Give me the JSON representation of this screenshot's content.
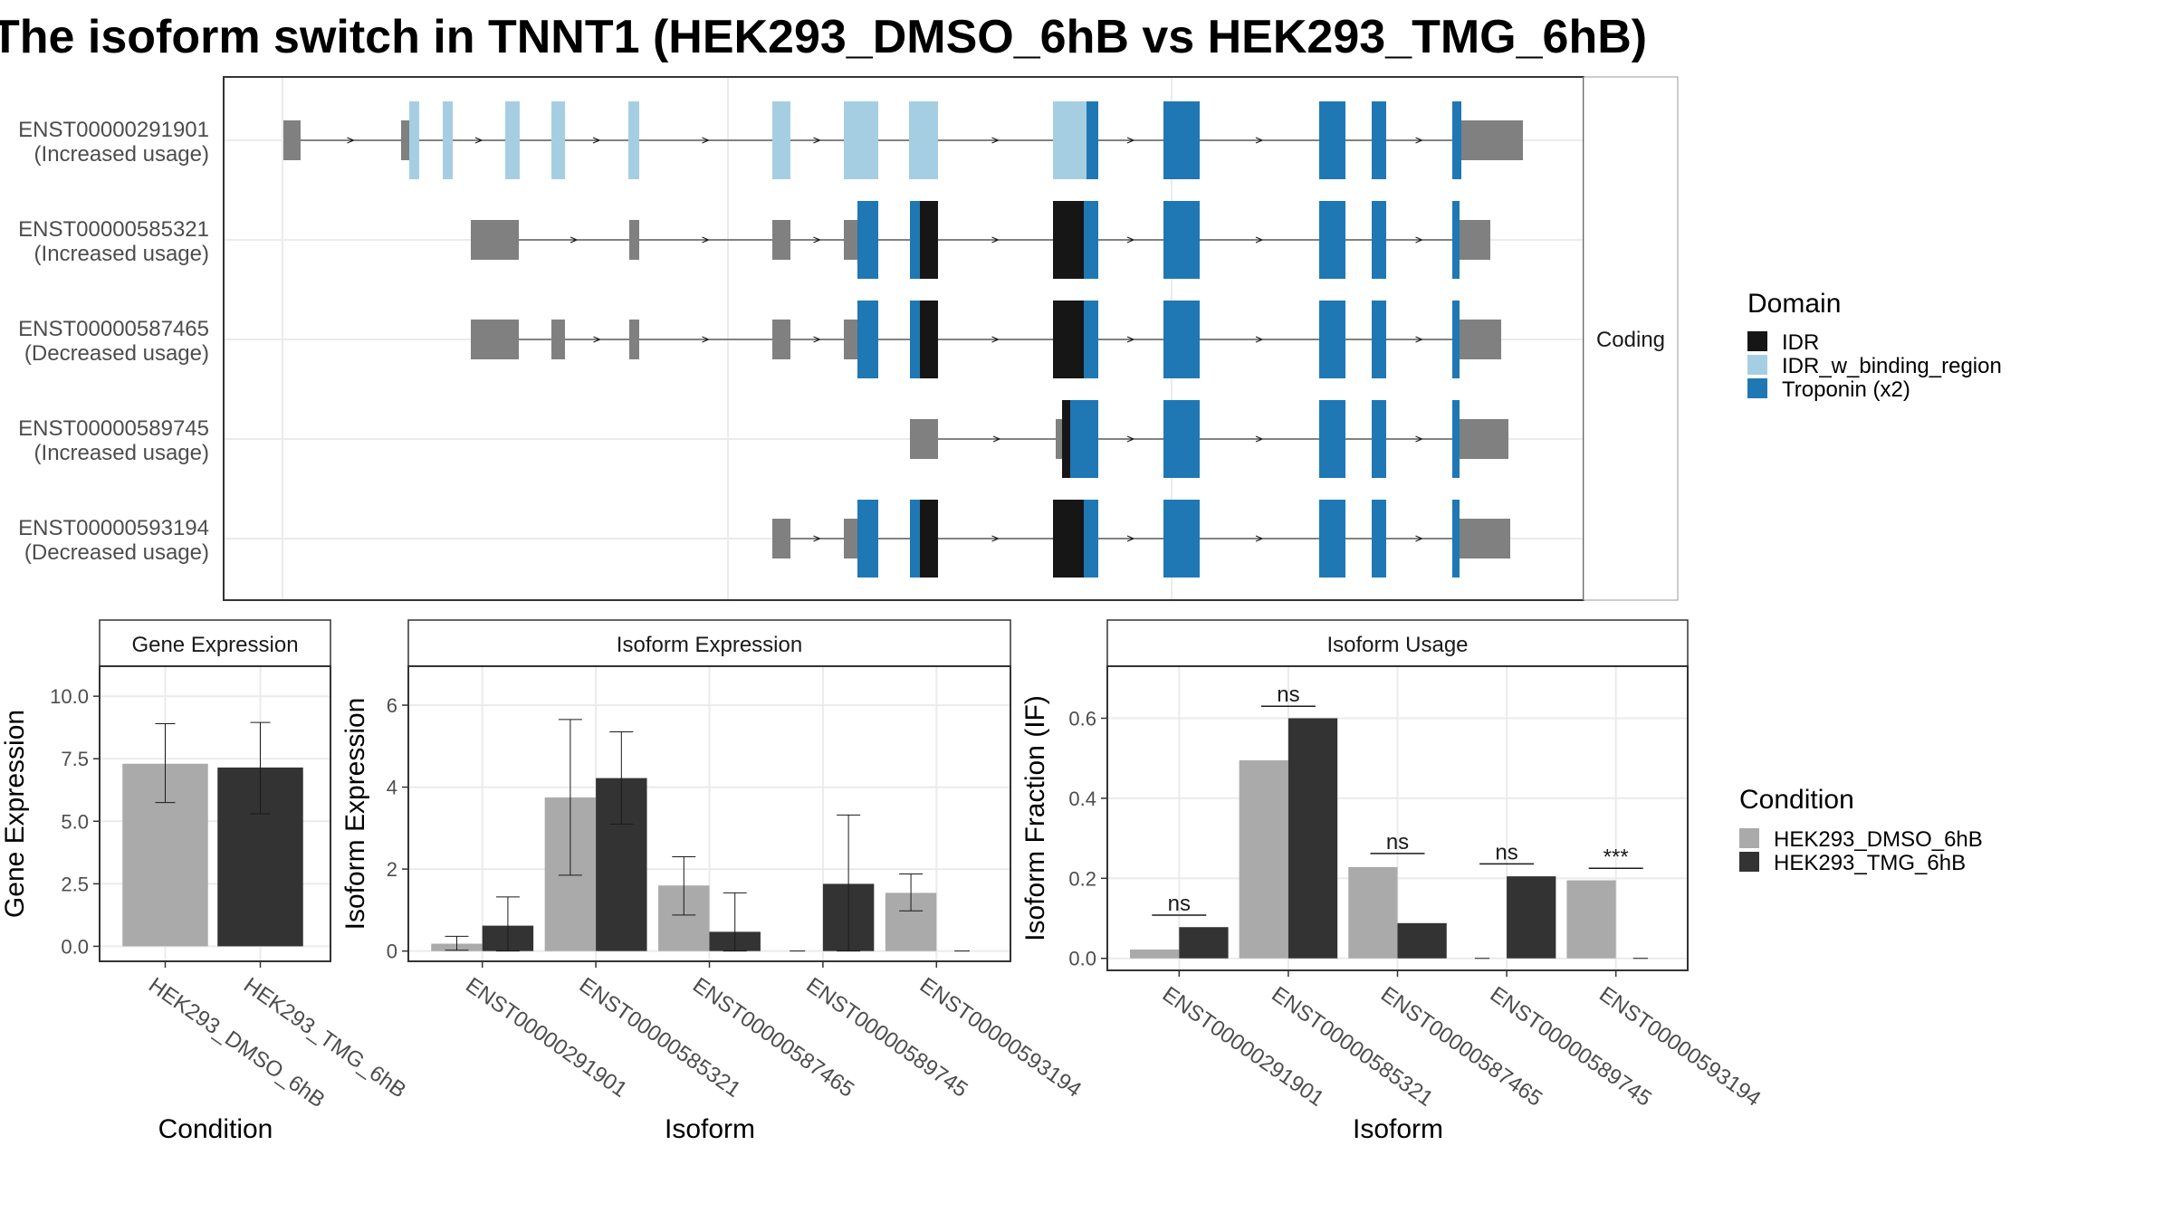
{
  "title": "The isoform switch in TNNT1 (HEK293_DMSO_6hB vs HEK293_TMG_6hB)",
  "colors": {
    "idr": "#161616",
    "idr_binding": "#a6cee3",
    "troponin": "#1f78b4",
    "utr": "#808080",
    "dmso": "#aaaaaa",
    "tmg": "#333333",
    "grid": "#ebebeb"
  },
  "chart_data": [
    {
      "type": "gene-structure",
      "strip_label": "Coding",
      "isoforms": [
        {
          "id": "ENST00000291901",
          "label": "(Increased usage)"
        },
        {
          "id": "ENST00000585321",
          "label": "(Increased usage)"
        },
        {
          "id": "ENST00000587465",
          "label": "(Decreased usage)"
        },
        {
          "id": "ENST00000589745",
          "label": "(Increased usage)"
        },
        {
          "id": "ENST00000593194",
          "label": "(Decreased usage)"
        }
      ],
      "legend": {
        "title": "Domain",
        "items": [
          {
            "name": "IDR",
            "color": "#161616"
          },
          {
            "name": "IDR_w_binding_region",
            "color": "#a6cee3"
          },
          {
            "name": "Troponin (x2)",
            "color": "#1f78b4"
          }
        ]
      }
    },
    {
      "type": "bar",
      "strip": "Gene Expression",
      "xlabel": "Condition",
      "ylabel": "Gene Expression",
      "ylim": [
        -0.6,
        11.2
      ],
      "yticks": [
        "0.0",
        "2.5",
        "5.0",
        "7.5",
        "10.0"
      ],
      "categories": [
        "HEK293_DMSO_6hB",
        "HEK293_TMG_6hB"
      ],
      "values": [
        7.3,
        7.15
      ],
      "err_low": [
        5.75,
        5.3
      ],
      "err_high": [
        8.9,
        8.95
      ]
    },
    {
      "type": "bar",
      "strip": "Isoform Expression",
      "xlabel": "Isoform",
      "ylabel": "Isoform Expression",
      "ylim": [
        -0.25,
        6.95
      ],
      "yticks": [
        "0",
        "2",
        "4",
        "6"
      ],
      "categories": [
        "ENST00000291901",
        "ENST00000585321",
        "ENST00000587465",
        "ENST00000589745",
        "ENST00000593194"
      ],
      "series": [
        {
          "name": "HEK293_DMSO_6hB",
          "values": [
            0.18,
            3.75,
            1.6,
            0.0,
            1.42
          ],
          "err_low": [
            0.02,
            1.85,
            0.88,
            0.0,
            0.98
          ],
          "err_high": [
            0.36,
            5.65,
            2.3,
            0.0,
            1.88
          ]
        },
        {
          "name": "HEK293_TMG_6hB",
          "values": [
            0.62,
            4.22,
            0.47,
            1.64,
            0.0
          ],
          "err_low": [
            0.0,
            3.1,
            0.0,
            0.0,
            0.0
          ],
          "err_high": [
            1.32,
            5.35,
            1.42,
            3.32,
            0.0
          ]
        }
      ]
    },
    {
      "type": "bar",
      "strip": "Isoform Usage",
      "xlabel": "Isoform",
      "ylabel": "Isoform Fraction (IF)",
      "ylim": [
        -0.03,
        0.73
      ],
      "yticks": [
        "0.0",
        "0.2",
        "0.4",
        "0.6"
      ],
      "categories": [
        "ENST00000291901",
        "ENST00000585321",
        "ENST00000587465",
        "ENST00000589745",
        "ENST00000593194"
      ],
      "series": [
        {
          "name": "HEK293_DMSO_6hB",
          "values": [
            0.022,
            0.495,
            0.228,
            0.0,
            0.195
          ]
        },
        {
          "name": "HEK293_TMG_6hB",
          "values": [
            0.078,
            0.6,
            0.088,
            0.205,
            0.0
          ]
        }
      ],
      "significance": [
        "ns",
        "ns",
        "ns",
        "ns",
        "***"
      ],
      "sig_y": [
        0.108,
        0.63,
        0.262,
        0.236,
        0.225
      ]
    }
  ],
  "condition_legend": {
    "title": "Condition",
    "items": [
      {
        "name": "HEK293_DMSO_6hB",
        "color": "#aaaaaa"
      },
      {
        "name": "HEK293_TMG_6hB",
        "color": "#333333"
      }
    ]
  }
}
